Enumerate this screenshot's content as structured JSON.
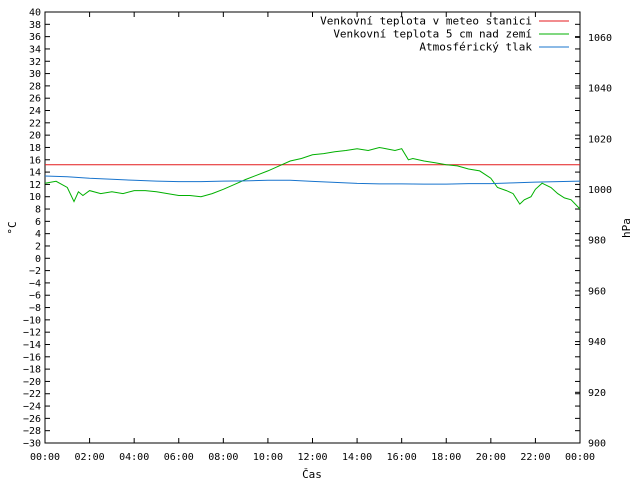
{
  "chart_data": {
    "type": "line",
    "xlabel": "Čas",
    "ylabel": "°C",
    "y2label": "hPa",
    "x_ticks": [
      "00:00",
      "02:00",
      "04:00",
      "06:00",
      "08:00",
      "10:00",
      "12:00",
      "14:00",
      "16:00",
      "18:00",
      "20:00",
      "22:00",
      "00:00"
    ],
    "x_range_hours": [
      0,
      24
    ],
    "ylim": [
      -30,
      40
    ],
    "y_step": 2,
    "y2lim": [
      900,
      1070
    ],
    "y2_ticks": [
      900,
      920,
      940,
      960,
      980,
      1000,
      1020,
      1040,
      1060
    ],
    "grid": false,
    "legend_position": "top-right",
    "series": [
      {
        "name": "Venkovní teplota v meteo stanici",
        "color": "#e41a1c",
        "axis": "y1",
        "x": [
          0,
          24
        ],
        "y": [
          15.2,
          15.2
        ]
      },
      {
        "name": "Venkovní teplota 5 cm nad zemí",
        "color": "#00b000",
        "axis": "y1",
        "x": [
          0,
          0.5,
          1.0,
          1.3,
          1.5,
          1.7,
          2.0,
          2.5,
          3.0,
          3.5,
          4.0,
          4.5,
          5.0,
          5.5,
          6.0,
          6.5,
          7.0,
          7.5,
          8.0,
          8.5,
          9.0,
          9.5,
          10.0,
          10.5,
          11.0,
          11.5,
          12.0,
          12.5,
          13.0,
          13.5,
          14.0,
          14.5,
          15.0,
          15.3,
          15.7,
          16.0,
          16.3,
          16.5,
          17.0,
          17.5,
          18.0,
          18.5,
          19.0,
          19.5,
          20.0,
          20.3,
          20.7,
          21.0,
          21.3,
          21.5,
          21.8,
          22.0,
          22.3,
          22.7,
          23.0,
          23.3,
          23.6,
          24.0
        ],
        "y": [
          12.2,
          12.5,
          11.5,
          9.2,
          10.8,
          10.2,
          11.0,
          10.5,
          10.8,
          10.5,
          11.0,
          11.0,
          10.8,
          10.5,
          10.2,
          10.2,
          10.0,
          10.5,
          11.2,
          12.0,
          12.8,
          13.5,
          14.2,
          15.0,
          15.8,
          16.2,
          16.8,
          17.0,
          17.3,
          17.5,
          17.8,
          17.5,
          18.0,
          17.8,
          17.5,
          17.8,
          16.0,
          16.2,
          15.8,
          15.5,
          15.2,
          15.0,
          14.5,
          14.2,
          13.0,
          11.5,
          11.0,
          10.5,
          8.8,
          9.5,
          10.0,
          11.2,
          12.2,
          11.5,
          10.5,
          9.8,
          9.5,
          8.0
        ]
      },
      {
        "name": "Atmosférický tlak",
        "color": "#1874cd",
        "axis": "y2",
        "x": [
          0,
          1,
          2,
          3,
          4,
          5,
          6,
          7,
          8,
          9,
          10,
          11,
          12,
          13,
          14,
          15,
          16,
          17,
          18,
          19,
          20,
          21,
          22,
          23,
          24
        ],
        "y": [
          1005.3,
          1005.0,
          1004.4,
          1004.0,
          1003.6,
          1003.3,
          1003.1,
          1003.1,
          1003.3,
          1003.4,
          1003.6,
          1003.6,
          1003.2,
          1002.8,
          1002.4,
          1002.2,
          1002.2,
          1002.1,
          1002.1,
          1002.3,
          1002.3,
          1002.6,
          1002.9,
          1003.1,
          1003.3
        ]
      }
    ]
  }
}
